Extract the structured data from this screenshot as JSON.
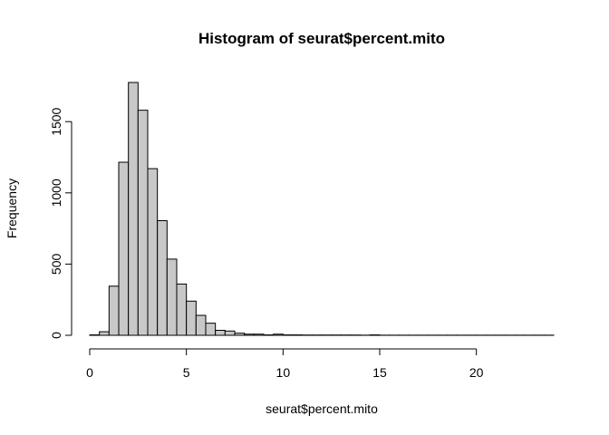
{
  "chart_data": {
    "type": "bar",
    "title": "Histogram of seurat$percent.mito",
    "xlabel": "seurat$percent.mito",
    "ylabel": "Frequency",
    "bin_width": 0.5,
    "bin_start": 0,
    "xlim": [
      0,
      24
    ],
    "ylim": [
      0,
      1800
    ],
    "x_ticks": [
      0,
      5,
      10,
      15,
      20
    ],
    "y_ticks": [
      0,
      500,
      1000,
      1500
    ],
    "counts": [
      3,
      25,
      345,
      1215,
      1775,
      1580,
      1170,
      805,
      535,
      360,
      240,
      140,
      85,
      35,
      30,
      15,
      8,
      8,
      3,
      8,
      3,
      3,
      2,
      2,
      2,
      2,
      2,
      2,
      1,
      3,
      1,
      1,
      1,
      1,
      1,
      1,
      1,
      1,
      1,
      1,
      1,
      1,
      1,
      1,
      1,
      1,
      1,
      1
    ],
    "bar_fill": "#c8c8c8",
    "bar_stroke": "#000000",
    "grid": false
  }
}
